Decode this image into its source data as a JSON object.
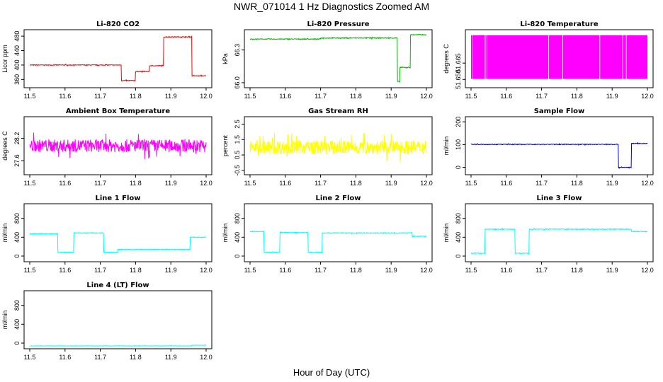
{
  "figure": {
    "title": "NWR_071014  1 Hz Diagnostics Zoomed AM",
    "xlabel": "Hour of Day (UTC)"
  },
  "chart_data": [
    {
      "id": "co2",
      "type": "line",
      "title": "Li-820 CO2",
      "ylabel": "Licor ppm",
      "color": "#ff0000",
      "xlim": [
        11.5,
        12.0
      ],
      "ylim": [
        345,
        490
      ],
      "yticks": [
        "360",
        "400",
        "440",
        "480"
      ],
      "ytick_values": [
        360,
        400,
        440,
        480
      ],
      "xticks": [
        "11.5",
        "11.6",
        "11.7",
        "11.8",
        "11.9",
        "12.0"
      ],
      "noise": 1,
      "series": [
        {
          "name": "CO2",
          "steps": [
            [
              11.5,
              400
            ],
            [
              11.76,
              357
            ],
            [
              11.8,
              382
            ],
            [
              11.84,
              398
            ],
            [
              11.88,
              478
            ],
            [
              11.96,
              370
            ],
            [
              12.0,
              370
            ]
          ]
        }
      ]
    },
    {
      "id": "pressure",
      "type": "line",
      "title": "Li-820 Pressure",
      "ylabel": "kPa",
      "color": "#00bb00",
      "xlim": [
        11.5,
        12.0
      ],
      "ylim": [
        65.98,
        66.46
      ],
      "yticks": [
        "66.0",
        "66.3"
      ],
      "ytick_values": [
        66.0,
        66.3
      ],
      "xticks": [
        "11.5",
        "11.6",
        "11.7",
        "11.8",
        "11.9",
        "12.0"
      ],
      "noise": 0.004,
      "series": [
        {
          "name": "Pressure",
          "steps": [
            [
              11.5,
              66.4
            ],
            [
              11.7,
              66.41
            ],
            [
              11.918,
              66.01
            ],
            [
              11.925,
              66.14
            ],
            [
              11.955,
              66.44
            ],
            [
              12.0,
              66.43
            ]
          ]
        }
      ]
    },
    {
      "id": "licor_temp",
      "type": "band",
      "title": "Li-820 Temperature",
      "ylabel": "degrees C",
      "color": "#ff00ff",
      "xlim": [
        11.5,
        12.0
      ],
      "ylim": [
        51.645,
        51.693
      ],
      "yticks": [
        "51.650",
        "51.665"
      ],
      "ytick_values": [
        51.65,
        51.665
      ],
      "xticks": [
        "11.5",
        "11.6",
        "11.7",
        "11.8",
        "11.9",
        "12.0"
      ],
      "series": [
        {
          "name": "Temperature",
          "low": 51.6505,
          "high": 51.6905
        }
      ]
    },
    {
      "id": "box_temp",
      "type": "line",
      "title": "Ambient Box Temperature",
      "ylabel": "degrees C",
      "color": "#ff00ff",
      "xlim": [
        11.5,
        12.0
      ],
      "ylim": [
        27.3,
        28.7
      ],
      "yticks": [
        "27.6",
        "28.2"
      ],
      "ytick_values": [
        27.6,
        28.2
      ],
      "xticks": [
        "11.5",
        "11.6",
        "11.7",
        "11.8",
        "11.9",
        "12.0"
      ],
      "noise": 0.17,
      "series": [
        {
          "name": "Box Temp",
          "steps": [
            [
              11.5,
              28.0
            ],
            [
              12.0,
              28.0
            ]
          ]
        }
      ]
    },
    {
      "id": "rh",
      "type": "line",
      "title": "Gas Stream RH",
      "ylabel": "percent",
      "color": "#ffff00",
      "xlim": [
        11.5,
        12.0
      ],
      "ylim": [
        -0.6,
        2.8
      ],
      "yticks": [
        "-0.5",
        "0.5",
        "1.5",
        "2.5"
      ],
      "ytick_values": [
        -0.5,
        0.5,
        1.5,
        2.5
      ],
      "xticks": [
        "11.5",
        "11.6",
        "11.7",
        "11.8",
        "11.9",
        "12.0"
      ],
      "noise": 0.45,
      "series": [
        {
          "name": "RH",
          "steps": [
            [
              11.5,
              1.0
            ],
            [
              12.0,
              1.0
            ]
          ]
        }
      ]
    },
    {
      "id": "sample_flow",
      "type": "line",
      "title": "Sample Flow",
      "ylabel": "ml/min",
      "color": "#0000cc",
      "xlim": [
        11.5,
        12.0
      ],
      "ylim": [
        -20,
        210
      ],
      "yticks": [
        "0",
        "100",
        "200"
      ],
      "ytick_values": [
        0,
        100,
        200
      ],
      "xticks": [
        "11.5",
        "11.6",
        "11.7",
        "11.8",
        "11.9",
        "12.0"
      ],
      "noise": 1.5,
      "series": [
        {
          "name": "Sample Flow",
          "steps": [
            [
              11.5,
              101
            ],
            [
              11.918,
              0
            ],
            [
              11.955,
              105
            ],
            [
              12.0,
              105
            ]
          ]
        }
      ]
    },
    {
      "id": "line1",
      "type": "line",
      "title": "Line 1 Flow",
      "ylabel": "ml/min",
      "color": "#00ffff",
      "xlim": [
        11.5,
        12.0
      ],
      "ylim": [
        -60,
        1050
      ],
      "yticks": [
        "0",
        "400",
        "800"
      ],
      "ytick_values": [
        0,
        400,
        800
      ],
      "xticks": [
        "11.5",
        "11.6",
        "11.7",
        "11.8",
        "11.9",
        "12.0"
      ],
      "noise": 8,
      "series": [
        {
          "name": "Line 1",
          "steps": [
            [
              11.5,
              470
            ],
            [
              11.58,
              80
            ],
            [
              11.625,
              490
            ],
            [
              11.71,
              80
            ],
            [
              11.75,
              140
            ],
            [
              11.955,
              400
            ],
            [
              12.0,
              400
            ]
          ]
        }
      ]
    },
    {
      "id": "line2",
      "type": "line",
      "title": "Line 2 Flow",
      "ylabel": "ml/min",
      "color": "#00ffff",
      "xlim": [
        11.5,
        12.0
      ],
      "ylim": [
        -60,
        1050
      ],
      "yticks": [
        "0",
        "400",
        "800"
      ],
      "ytick_values": [
        0,
        400,
        800
      ],
      "xticks": [
        "11.5",
        "11.6",
        "11.7",
        "11.8",
        "11.9",
        "12.0"
      ],
      "noise": 8,
      "series": [
        {
          "name": "Line 2",
          "steps": [
            [
              11.5,
              520
            ],
            [
              11.54,
              80
            ],
            [
              11.585,
              500
            ],
            [
              11.665,
              80
            ],
            [
              11.705,
              490
            ],
            [
              11.96,
              420
            ],
            [
              12.0,
              420
            ]
          ]
        }
      ]
    },
    {
      "id": "line3",
      "type": "line",
      "title": "Line 3 Flow",
      "ylabel": "ml/min",
      "color": "#00ffff",
      "xlim": [
        11.5,
        12.0
      ],
      "ylim": [
        -60,
        1050
      ],
      "yticks": [
        "0",
        "400",
        "800"
      ],
      "ytick_values": [
        0,
        400,
        800
      ],
      "xticks": [
        "11.5",
        "11.6",
        "11.7",
        "11.8",
        "11.9",
        "12.0"
      ],
      "noise": 8,
      "series": [
        {
          "name": "Line 3",
          "steps": [
            [
              11.5,
              60
            ],
            [
              11.54,
              570
            ],
            [
              11.625,
              60
            ],
            [
              11.665,
              570
            ],
            [
              11.955,
              520
            ],
            [
              12.0,
              520
            ]
          ]
        }
      ]
    },
    {
      "id": "line4",
      "type": "line",
      "title": "Line 4 (LT) Flow",
      "ylabel": "ml/min",
      "color": "#00ffff",
      "xlim": [
        11.5,
        12.0
      ],
      "ylim": [
        -60,
        1050
      ],
      "yticks": [
        "0",
        "400",
        "800"
      ],
      "ytick_values": [
        0,
        400,
        800
      ],
      "xticks": [
        "11.5",
        "11.6",
        "11.7",
        "11.8",
        "11.9",
        "12.0"
      ],
      "noise": 3,
      "series": [
        {
          "name": "Line 4",
          "steps": [
            [
              11.5,
              -60
            ],
            [
              11.96,
              -45
            ],
            [
              12.0,
              -45
            ]
          ]
        }
      ]
    }
  ]
}
